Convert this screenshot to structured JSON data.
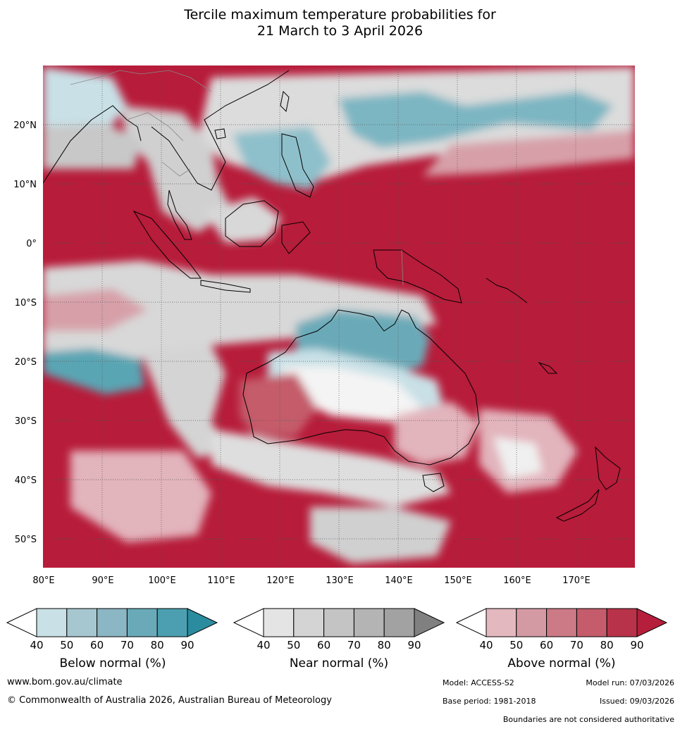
{
  "title": {
    "line1": "Tercile maximum temperature probabilities for",
    "line2": "21 March to 3 April 2026"
  },
  "map": {
    "lat_labels": [
      "20°N",
      "10°N",
      "0°",
      "10°S",
      "20°S",
      "30°S",
      "40°S",
      "50°S"
    ],
    "lon_labels": [
      "80°E",
      "90°E",
      "100°E",
      "110°E",
      "120°E",
      "130°E",
      "140°E",
      "150°E",
      "160°E",
      "170°E"
    ],
    "colors": {
      "above_dominant": "#b71c3a",
      "above_light": "#e2b4bc",
      "near": "#d8d8d8",
      "below": "#5aa5b4",
      "below_light": "#c8e0e6",
      "coast": "#000000",
      "border": "#888888"
    }
  },
  "colorbars": [
    {
      "label": "Below normal (%)",
      "ticks": [
        "40",
        "50",
        "60",
        "70",
        "80",
        "90"
      ],
      "colors": [
        "#ffffff",
        "#c8e0e6",
        "#a6c7cf",
        "#8bb6c3",
        "#6aaab8",
        "#4c9fb0",
        "#2c8c9f"
      ]
    },
    {
      "label": "Near normal (%)",
      "ticks": [
        "40",
        "50",
        "60",
        "70",
        "80",
        "90"
      ],
      "colors": [
        "#ffffff",
        "#e4e4e4",
        "#d4d4d4",
        "#c4c4c4",
        "#b4b4b4",
        "#a2a2a2",
        "#808080"
      ]
    },
    {
      "label": "Above normal (%)",
      "ticks": [
        "40",
        "50",
        "60",
        "70",
        "80",
        "90"
      ],
      "colors": [
        "#ffffff",
        "#e3b8bf",
        "#d49aa3",
        "#cc7a86",
        "#c45c6b",
        "#b8334a",
        "#b51f3c"
      ]
    }
  ],
  "footer": {
    "url": "www.bom.gov.au/climate",
    "copyright": "© Commonwealth of Australia 2026, Australian Bureau of Meteorology",
    "model": "Model: ACCESS-S2",
    "model_run": "Model run: 07/03/2026",
    "base_period": "Base period: 1981-2018",
    "issued": "Issued: 09/03/2026",
    "disclaimer": "Boundaries are not considered authoritative"
  }
}
